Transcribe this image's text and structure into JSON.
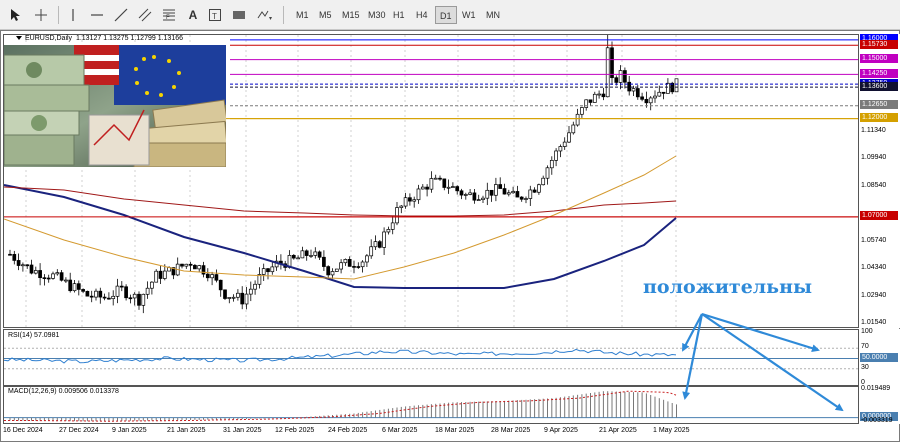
{
  "toolbar": {
    "tools": [
      "cursor-icon",
      "crosshair-icon",
      "vertical-line-icon",
      "horizontal-line-icon",
      "trend-line-icon",
      "equidistant-channel-icon",
      "fibonacci-icon",
      "text-icon",
      "text-label-icon",
      "rectangle-icon",
      "shapes-icon"
    ],
    "timeframes": [
      "M1",
      "M5",
      "M15",
      "M30",
      "H1",
      "H4",
      "D1",
      "W1",
      "MN"
    ],
    "active_timeframe": "D1"
  },
  "symbol": {
    "header": "EURUSD,Daily",
    "ohlc": "1.13127 1.13275 1.12799 1.13166"
  },
  "price_axis": {
    "labels": [
      "1.16000",
      "1.15730",
      "1.15000",
      "1.14250",
      "1.13750",
      "1.13600",
      "1.12650",
      "1.12000",
      "1.11340",
      "1.09940",
      "1.08540",
      "1.07000",
      "1.05740",
      "1.04340",
      "1.02940",
      "1.01540"
    ],
    "tags": [
      {
        "value": "1.16000",
        "price": 1.16,
        "color": "#0000ff"
      },
      {
        "value": "1.15730",
        "price": 1.1573,
        "color": "#c80000"
      },
      {
        "value": "1.15000",
        "price": 1.15,
        "color": "#c000c0"
      },
      {
        "value": "1.14250",
        "price": 1.1425,
        "color": "#c000c0"
      },
      {
        "value": "1.13750",
        "price": 1.1375,
        "color": "#0000c8"
      },
      {
        "value": "1.13600",
        "price": 1.136,
        "color": "#101030"
      },
      {
        "value": "1.12650",
        "price": 1.1265,
        "color": "#7a7a7a"
      },
      {
        "value": "1.12000",
        "price": 1.12,
        "color": "#d4a000"
      },
      {
        "value": "1.07000",
        "price": 1.07,
        "color": "#c80000"
      }
    ]
  },
  "rsi": {
    "label": "RSI(14) 57.0981",
    "levels": [
      "100",
      "70",
      "50.0000",
      "30",
      "0"
    ]
  },
  "macd": {
    "label": "MACD(12,26,9) 0.009506 0.013378",
    "levels": [
      "0.019489",
      "0.000000",
      "-0.003319"
    ]
  },
  "time_axis": {
    "labels": [
      "16 Dec 2024",
      "27 Dec 2024",
      "9 Jan 2025",
      "21 Jan 2025",
      "31 Jan 2025",
      "12 Feb 2025",
      "24 Feb 2025",
      "6 Mar 2025",
      "18 Mar 2025",
      "28 Mar 2025",
      "9 Apr 2025",
      "21 Apr 2025",
      "1 May 2025"
    ]
  },
  "annotation": {
    "text": "положительны",
    "color": "#2f8ad8"
  }
}
